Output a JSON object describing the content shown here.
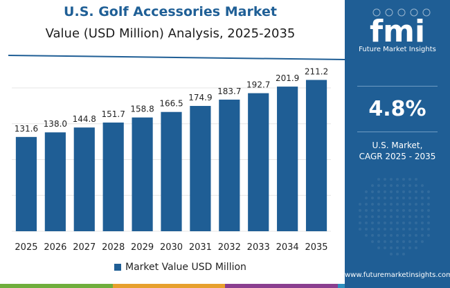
{
  "header": {
    "title": "U.S. Golf Accessories Market",
    "subtitle": "Value (USD Million) Analysis, 2025-2035"
  },
  "colors": {
    "bar": "#1f5e95",
    "title": "#1f5f96",
    "sidebar": "#1f5e95",
    "rule": "#1f5e95",
    "strip": [
      "#6fae3c",
      "#e7a02d",
      "#8a3e8f",
      "#2d8fbf"
    ]
  },
  "sidebar": {
    "logo_text": "fmi",
    "logo_tagline": "Future Market Insights",
    "cagr_value": "4.8%",
    "cagr_label_line1": "U.S. Market,",
    "cagr_label_line2": "CAGR 2025 - 2035",
    "website": "www.futuremarketinsights.com"
  },
  "chart_data": {
    "type": "bar",
    "categories": [
      "2025",
      "2026",
      "2027",
      "2028",
      "2029",
      "2030",
      "2031",
      "2032",
      "2033",
      "2034",
      "2035"
    ],
    "series": [
      {
        "name": "Market Value USD Million",
        "values": [
          131.6,
          138.0,
          144.8,
          151.7,
          158.8,
          166.5,
          174.9,
          183.7,
          192.7,
          201.9,
          211.2
        ],
        "labels": [
          "131.6",
          "138.0",
          "144.8",
          "151.7",
          "158.8",
          "166.5",
          "174.9",
          "183.7",
          "192.7",
          "201.9",
          "211.2"
        ]
      }
    ],
    "ylim": [
      0,
      230
    ],
    "grid": true,
    "legend_position": "bottom"
  }
}
